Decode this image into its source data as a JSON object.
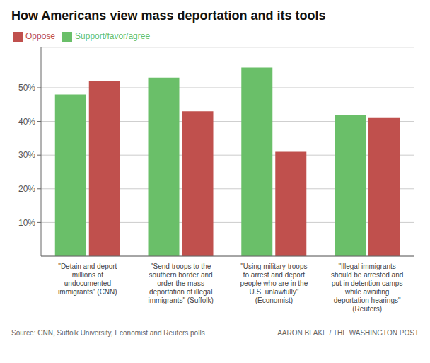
{
  "chart_data": {
    "type": "bar",
    "title": "How Americans view mass deportation and its tools",
    "categories": [
      "\"Detain and deport\nmillions of\nundocumented\nimmigrants\" (CNN)",
      "\"Send troops to the\nsouthern border and\norder the mass\ndeportation of illegal\nimmigrants\" (Suffolk)",
      "\"Using military troops\nto arrest and deport\npeople who are in the\nU.S. unlawfully\"\n(Economist)",
      "\"Illegal immigrants\nshould be arrested and\nput in detention camps\nwhile awaiting\ndeportation hearings\"\n(Reuters)"
    ],
    "series": [
      {
        "name": "Support/favor/agree",
        "color": "#6abf69",
        "values": [
          48,
          53,
          56,
          42
        ]
      },
      {
        "name": "Oppose",
        "color": "#c0504d",
        "values": [
          52,
          43,
          31,
          41
        ]
      }
    ],
    "ylim": [
      0,
      62
    ],
    "yticks": [
      {
        "value": 10,
        "label": "10%"
      },
      {
        "value": 20,
        "label": "20%"
      },
      {
        "value": 30,
        "label": "30%"
      },
      {
        "value": 40,
        "label": "40%"
      },
      {
        "value": 50,
        "label": "50%"
      }
    ],
    "grid": true,
    "legend": "upper left",
    "annotations": [
      "Source: CNN, Suffolk University, Economist and Reuters polls",
      "AARON BLAKE / THE WASHINGTON POST"
    ]
  }
}
